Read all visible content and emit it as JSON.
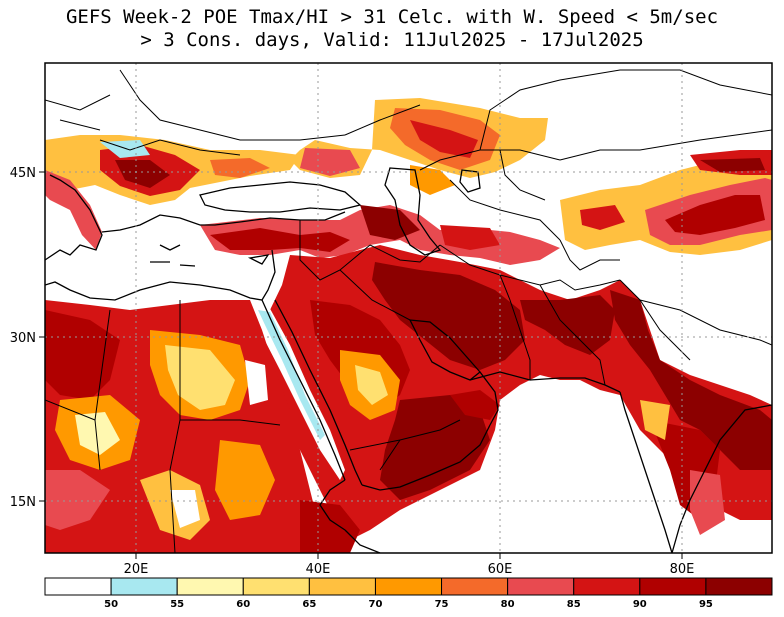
{
  "title": {
    "line1": "GEFS Week-2 POE Tmax/HI > 31 Celc. with W. Speed < 5m/sec",
    "line2": "> 3 Cons. days, Valid: 11Jul2025 - 17Jul2025"
  },
  "map": {
    "region": "Southern Europe, North Africa, Middle East and South Asia",
    "lon_labels": [
      "20E",
      "40E",
      "60E",
      "80E"
    ],
    "lat_labels": [
      "45N",
      "30N",
      "15N"
    ],
    "gridlines": "dotted",
    "colorbar": {
      "levels": [
        "50",
        "55",
        "60",
        "65",
        "70",
        "75",
        "80",
        "85",
        "90",
        "95"
      ],
      "colors": [
        "#ffffff",
        "#a8e8f0",
        "#fff8b0",
        "#ffe070",
        "#ffc040",
        "#ff9900",
        "#f46a2a",
        "#e84a50",
        "#d41414",
        "#b00000",
        "#8c0000"
      ]
    }
  }
}
